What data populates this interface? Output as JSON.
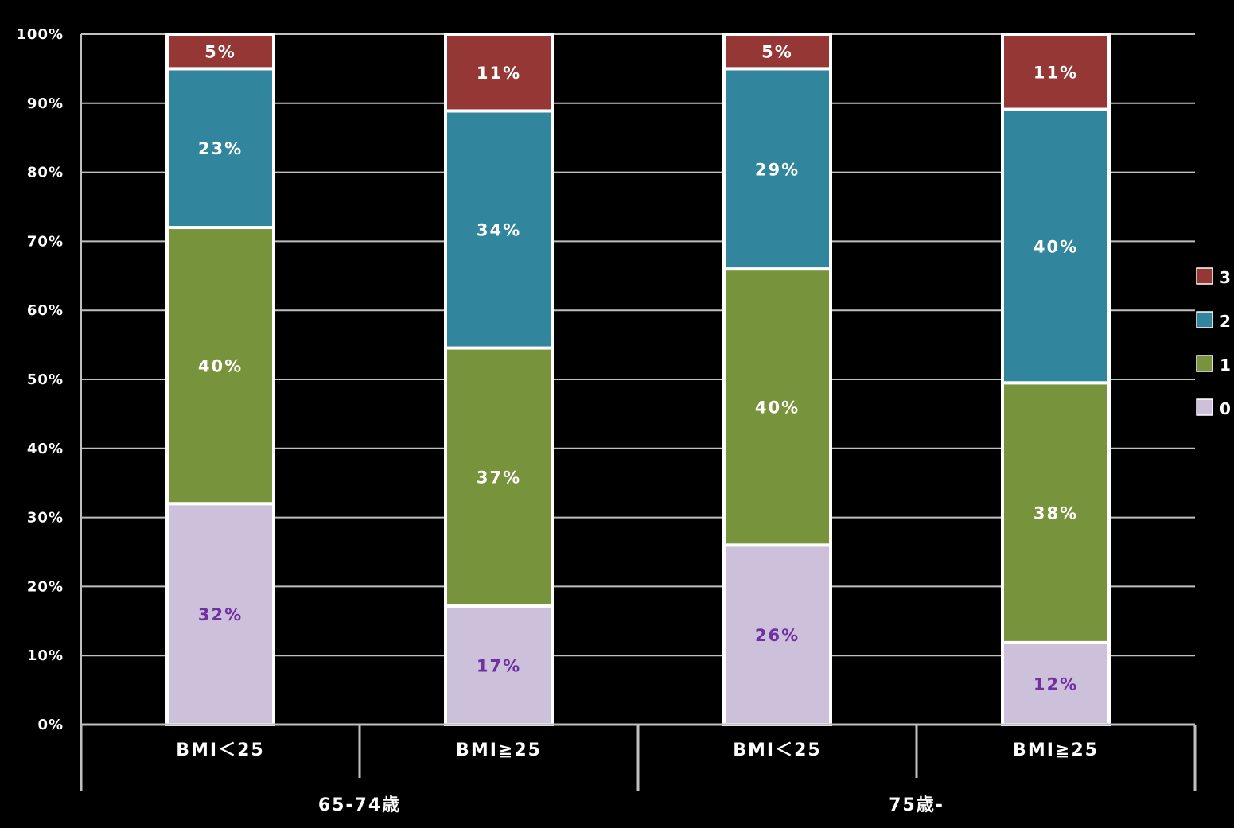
{
  "chart_data": {
    "type": "bar",
    "stacked": true,
    "percent": true,
    "categories": [
      "BMI＜25",
      "BMI≧25",
      "BMI＜25",
      "BMI≧25"
    ],
    "groups": [
      {
        "label": "65-74歳",
        "categories": [
          0,
          1
        ]
      },
      {
        "label": "75歳-",
        "categories": [
          2,
          3
        ]
      }
    ],
    "series": [
      {
        "name": "0",
        "color": "#ccc0da",
        "label_color": "#7030a0",
        "values": [
          32,
          17,
          26,
          12
        ],
        "labels": [
          "32%",
          "17%",
          "26%",
          "12%"
        ]
      },
      {
        "name": "1",
        "color": "#77933c",
        "label_color": "#ffffff",
        "values": [
          40,
          37,
          40,
          38
        ],
        "labels": [
          "40%",
          "37%",
          "40%",
          "38%"
        ]
      },
      {
        "name": "2",
        "color": "#31859c",
        "label_color": "#ffffff",
        "values": [
          23,
          34,
          29,
          40
        ],
        "labels": [
          "23%",
          "34%",
          "29%",
          "40%"
        ]
      },
      {
        "name": "3",
        "color": "#953735",
        "label_color": "#ffffff",
        "values": [
          5,
          11,
          5,
          11
        ],
        "labels": [
          "5%",
          "11%",
          "5%",
          "11%"
        ]
      }
    ],
    "y_ticks": [
      "0%",
      "10%",
      "20%",
      "30%",
      "40%",
      "50%",
      "60%",
      "70%",
      "80%",
      "90%",
      "100%"
    ],
    "ylim": [
      0,
      100
    ],
    "grid": true,
    "legend_position": "right",
    "legend_order": [
      "3",
      "2",
      "1",
      "0"
    ],
    "colors": {
      "background": "#000000",
      "grid": "#c0c0c0",
      "bar_border": "#ffffff"
    }
  }
}
